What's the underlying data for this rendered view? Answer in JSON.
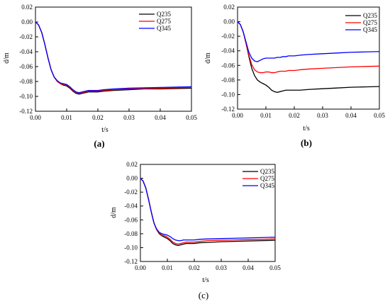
{
  "chart_data": [
    {
      "type": "line",
      "panel_label": "(a)",
      "xlabel": "t/s",
      "ylabel": "d/m",
      "xlim": [
        0.0,
        0.05
      ],
      "ylim": [
        -0.12,
        0.02
      ],
      "xticks": [
        "0.00",
        "0.01",
        "0.02",
        "0.03",
        "0.04",
        "0.05"
      ],
      "yticks": [
        "0.02",
        "0.00",
        "-0.02",
        "-0.04",
        "-0.06",
        "-0.08",
        "-0.10",
        "-0.12"
      ],
      "legend": "top-right",
      "x": [
        0,
        0.001,
        0.002,
        0.003,
        0.004,
        0.005,
        0.006,
        0.007,
        0.008,
        0.009,
        0.01,
        0.011,
        0.012,
        0.013,
        0.014,
        0.015,
        0.016,
        0.017,
        0.018,
        0.019,
        0.02,
        0.022,
        0.025,
        0.03,
        0.035,
        0.04,
        0.045,
        0.05
      ],
      "series": [
        {
          "name": "Q235",
          "color": "#000000",
          "values": [
            0,
            -0.004,
            -0.014,
            -0.03,
            -0.048,
            -0.064,
            -0.074,
            -0.08,
            -0.083,
            -0.085,
            -0.086,
            -0.089,
            -0.093,
            -0.096,
            -0.097,
            -0.096,
            -0.095,
            -0.094,
            -0.094,
            -0.094,
            -0.094,
            -0.093,
            -0.092,
            -0.091,
            -0.09,
            -0.09,
            -0.0895,
            -0.089
          ]
        },
        {
          "name": "Q275",
          "color": "#ff0000",
          "values": [
            0,
            -0.004,
            -0.014,
            -0.03,
            -0.048,
            -0.064,
            -0.074,
            -0.08,
            -0.083,
            -0.084,
            -0.085,
            -0.088,
            -0.092,
            -0.095,
            -0.096,
            -0.095,
            -0.094,
            -0.093,
            -0.093,
            -0.093,
            -0.093,
            -0.092,
            -0.091,
            -0.09,
            -0.0895,
            -0.089,
            -0.0885,
            -0.088
          ]
        },
        {
          "name": "Q345",
          "color": "#0000ff",
          "values": [
            0,
            -0.004,
            -0.014,
            -0.03,
            -0.048,
            -0.064,
            -0.074,
            -0.079,
            -0.082,
            -0.083,
            -0.084,
            -0.087,
            -0.091,
            -0.094,
            -0.095,
            -0.094,
            -0.093,
            -0.092,
            -0.092,
            -0.092,
            -0.092,
            -0.091,
            -0.09,
            -0.089,
            -0.0885,
            -0.088,
            -0.0875,
            -0.087
          ]
        }
      ]
    },
    {
      "type": "line",
      "panel_label": "(b)",
      "xlabel": "t/s",
      "ylabel": "d/m",
      "xlim": [
        0.0,
        0.05
      ],
      "ylim": [
        -0.12,
        0.02
      ],
      "xticks": [
        "0.00",
        "0.01",
        "0.02",
        "0.03",
        "0.04",
        "0.05"
      ],
      "yticks": [
        "0.02",
        "0.00",
        "-0.02",
        "-0.04",
        "-0.06",
        "-0.08",
        "-0.10",
        "-0.12"
      ],
      "legend": "top-right",
      "x": [
        0,
        0.001,
        0.002,
        0.003,
        0.004,
        0.005,
        0.006,
        0.007,
        0.008,
        0.009,
        0.01,
        0.011,
        0.012,
        0.013,
        0.014,
        0.015,
        0.016,
        0.017,
        0.018,
        0.019,
        0.02,
        0.022,
        0.025,
        0.03,
        0.035,
        0.04,
        0.045,
        0.05
      ],
      "series": [
        {
          "name": "Q235",
          "color": "#000000",
          "values": [
            0,
            -0.004,
            -0.014,
            -0.03,
            -0.048,
            -0.064,
            -0.074,
            -0.08,
            -0.083,
            -0.085,
            -0.087,
            -0.09,
            -0.094,
            -0.096,
            -0.097,
            -0.096,
            -0.095,
            -0.094,
            -0.094,
            -0.094,
            -0.094,
            -0.094,
            -0.093,
            -0.092,
            -0.091,
            -0.09,
            -0.0895,
            -0.089
          ]
        },
        {
          "name": "Q275",
          "color": "#ff0000",
          "values": [
            0,
            -0.004,
            -0.014,
            -0.03,
            -0.046,
            -0.059,
            -0.066,
            -0.069,
            -0.07,
            -0.07,
            -0.069,
            -0.069,
            -0.07,
            -0.07,
            -0.069,
            -0.068,
            -0.068,
            -0.068,
            -0.067,
            -0.067,
            -0.067,
            -0.066,
            -0.065,
            -0.064,
            -0.063,
            -0.062,
            -0.0615,
            -0.061
          ]
        },
        {
          "name": "Q345",
          "color": "#0000ff",
          "values": [
            0,
            -0.004,
            -0.014,
            -0.028,
            -0.042,
            -0.05,
            -0.054,
            -0.055,
            -0.053,
            -0.051,
            -0.05,
            -0.05,
            -0.05,
            -0.05,
            -0.049,
            -0.049,
            -0.048,
            -0.048,
            -0.047,
            -0.047,
            -0.047,
            -0.046,
            -0.045,
            -0.044,
            -0.043,
            -0.042,
            -0.0415,
            -0.041
          ]
        }
      ]
    },
    {
      "type": "line",
      "panel_label": "(c)",
      "xlabel": "t/s",
      "ylabel": "d/m",
      "xlim": [
        0.0,
        0.05
      ],
      "ylim": [
        -0.12,
        0.02
      ],
      "xticks": [
        "0.00",
        "0.01",
        "0.02",
        "0.03",
        "0.04",
        "0.05"
      ],
      "yticks": [
        "0.02",
        "0.00",
        "-0.02",
        "-0.04",
        "-0.06",
        "-0.08",
        "-0.10",
        "-0.12"
      ],
      "legend": "top-right",
      "x": [
        0,
        0.001,
        0.002,
        0.003,
        0.004,
        0.005,
        0.006,
        0.007,
        0.008,
        0.009,
        0.01,
        0.011,
        0.012,
        0.013,
        0.014,
        0.015,
        0.016,
        0.017,
        0.018,
        0.019,
        0.02,
        0.022,
        0.025,
        0.03,
        0.035,
        0.04,
        0.045,
        0.05
      ],
      "series": [
        {
          "name": "Q235",
          "color": "#000000",
          "values": [
            0,
            -0.004,
            -0.014,
            -0.03,
            -0.048,
            -0.064,
            -0.074,
            -0.08,
            -0.083,
            -0.085,
            -0.087,
            -0.09,
            -0.094,
            -0.096,
            -0.097,
            -0.096,
            -0.095,
            -0.094,
            -0.094,
            -0.094,
            -0.094,
            -0.093,
            -0.0925,
            -0.0915,
            -0.091,
            -0.0905,
            -0.09,
            -0.0895
          ]
        },
        {
          "name": "Q275",
          "color": "#ff0000",
          "values": [
            0,
            -0.004,
            -0.014,
            -0.03,
            -0.048,
            -0.064,
            -0.074,
            -0.079,
            -0.082,
            -0.083,
            -0.085,
            -0.088,
            -0.092,
            -0.094,
            -0.095,
            -0.094,
            -0.093,
            -0.092,
            -0.092,
            -0.092,
            -0.092,
            -0.091,
            -0.09,
            -0.0895,
            -0.089,
            -0.0885,
            -0.088,
            -0.0875
          ]
        },
        {
          "name": "Q345",
          "color": "#0000ff",
          "values": [
            0,
            -0.004,
            -0.014,
            -0.03,
            -0.048,
            -0.064,
            -0.073,
            -0.078,
            -0.08,
            -0.081,
            -0.082,
            -0.084,
            -0.087,
            -0.089,
            -0.09,
            -0.09,
            -0.089,
            -0.089,
            -0.089,
            -0.089,
            -0.089,
            -0.088,
            -0.0875,
            -0.087,
            -0.0865,
            -0.086,
            -0.0855,
            -0.085
          ]
        }
      ]
    }
  ]
}
